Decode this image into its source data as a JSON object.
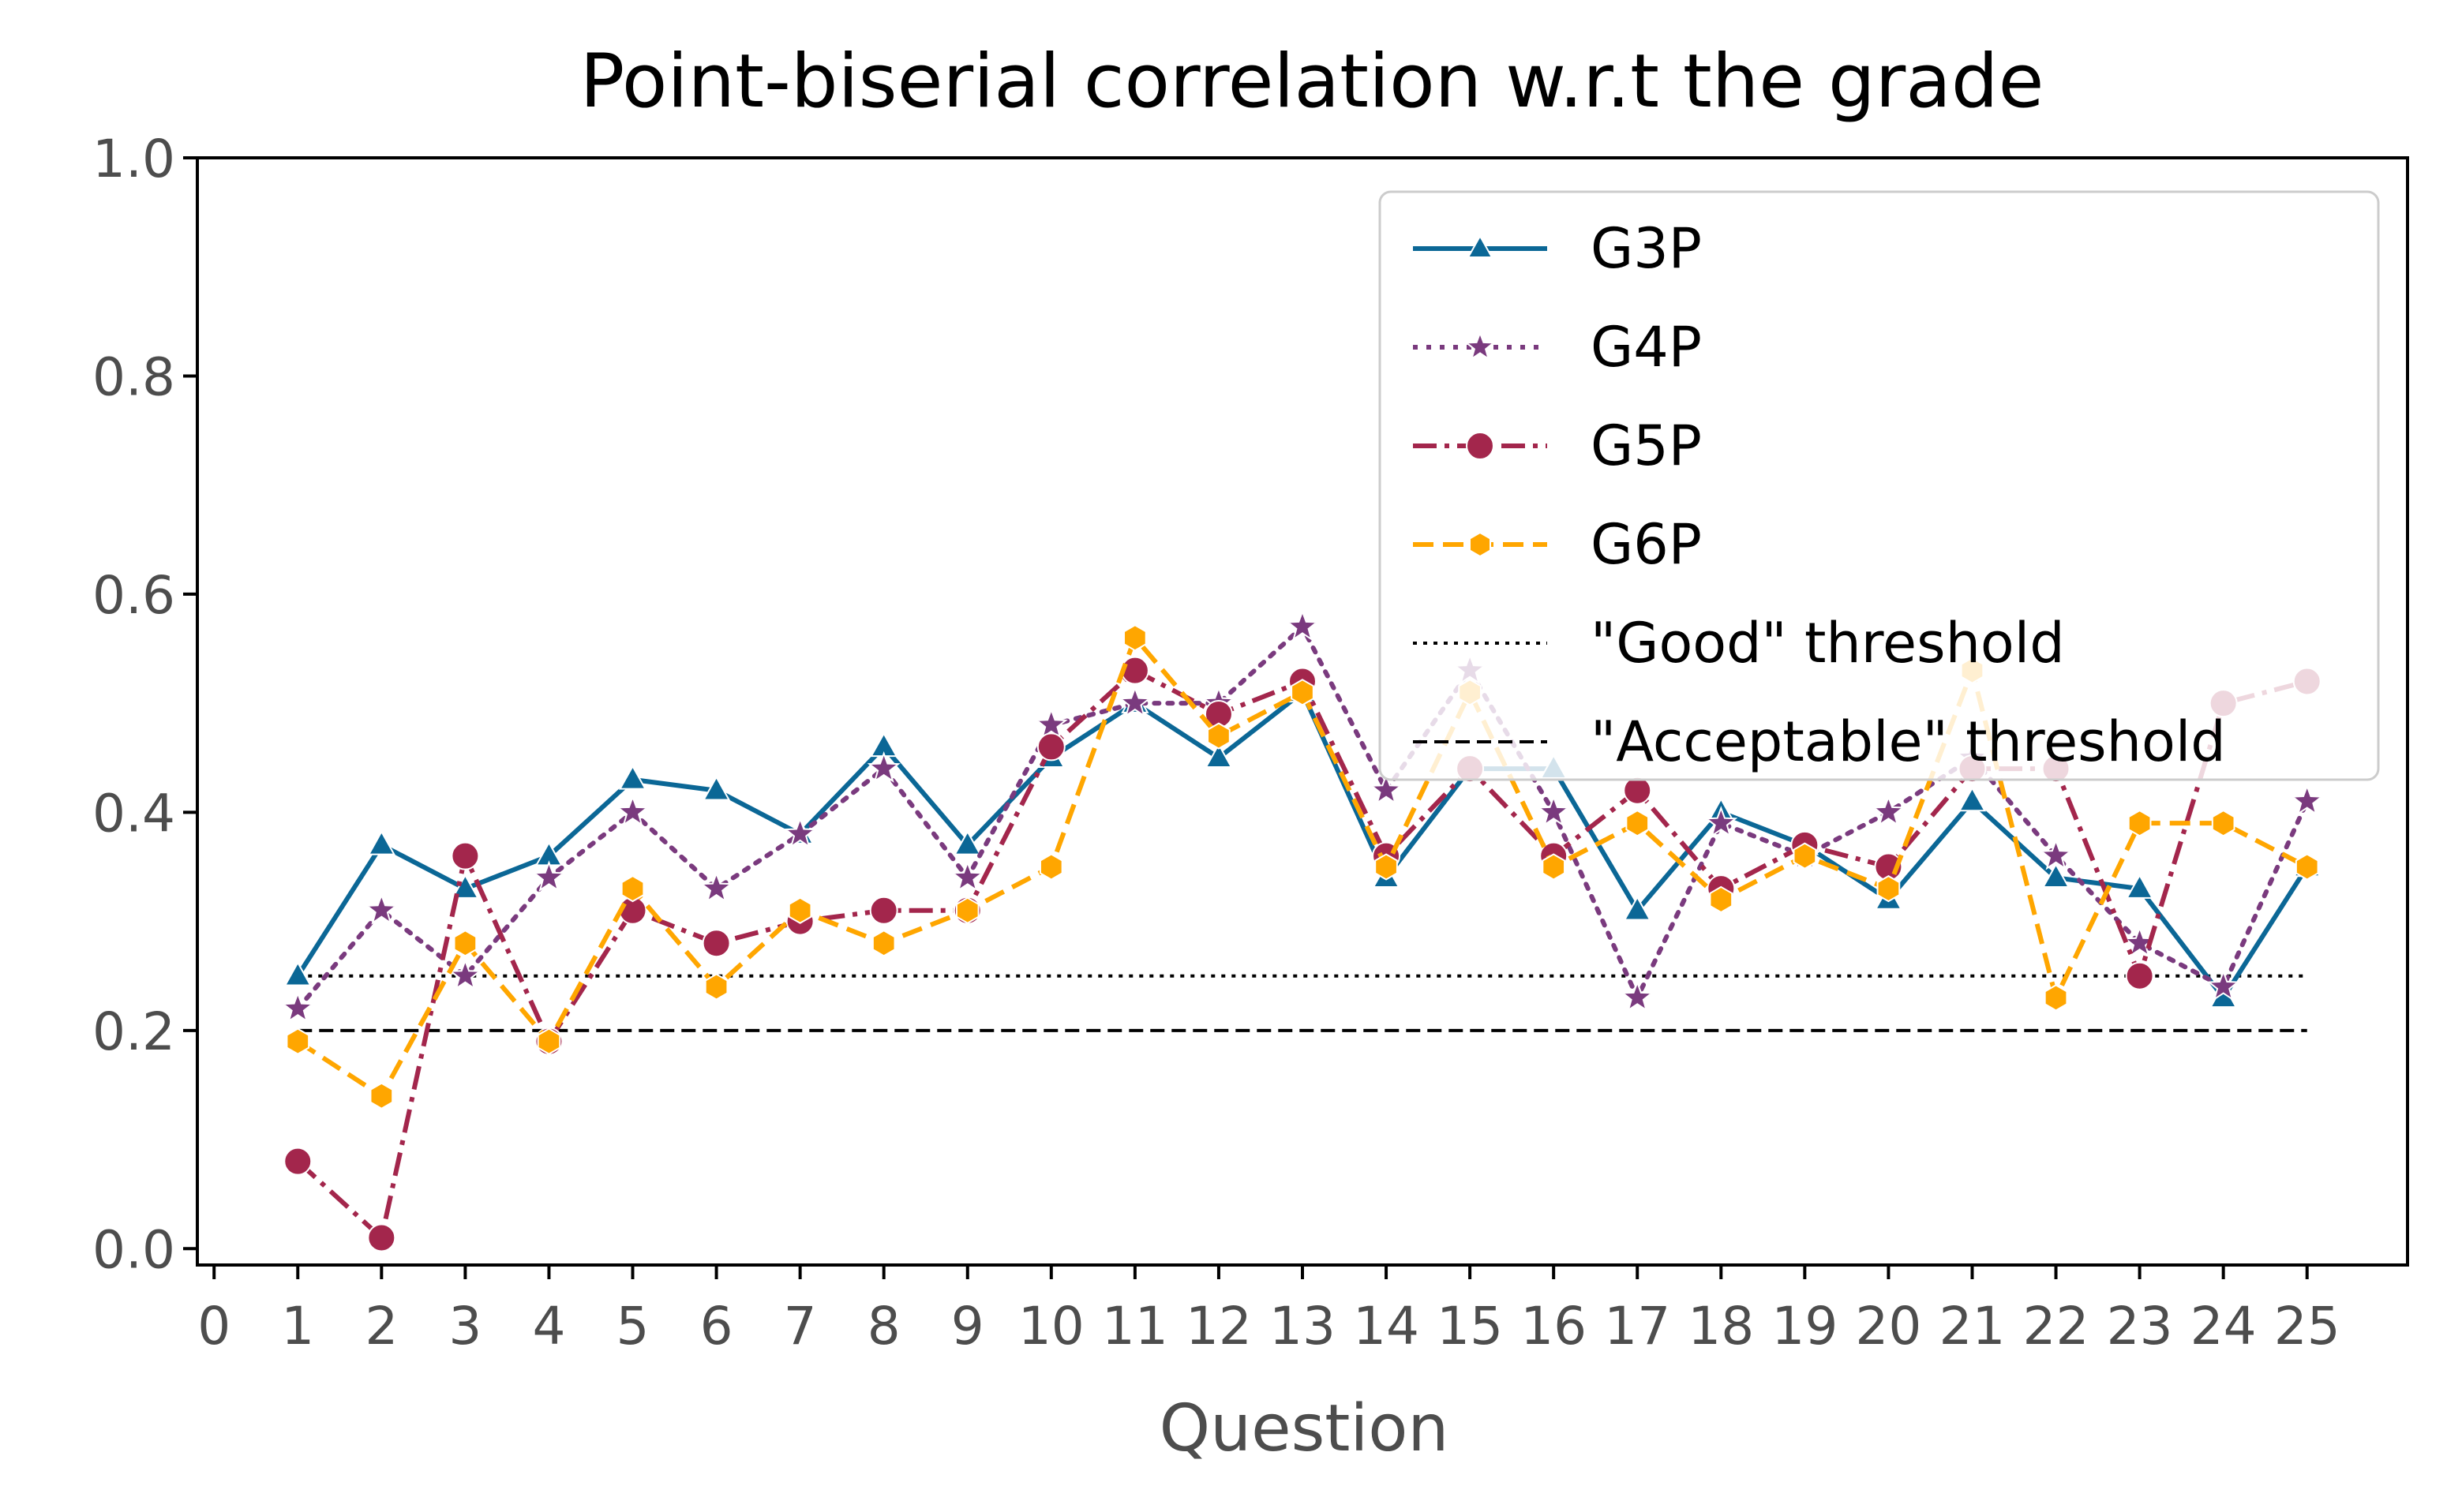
{
  "chart_data": {
    "type": "line",
    "title": "Point-biserial correlation w.r.t the grade",
    "xlabel": "Question",
    "ylabel": "",
    "xlim": [
      -0.2,
      26.2
    ],
    "ylim": [
      -0.015,
      1.0
    ],
    "x_ticks": [
      0,
      1,
      2,
      3,
      4,
      5,
      6,
      7,
      8,
      9,
      10,
      11,
      12,
      13,
      14,
      15,
      16,
      17,
      18,
      19,
      20,
      21,
      22,
      23,
      24,
      25
    ],
    "y_ticks": [
      0.0,
      0.2,
      0.4,
      0.6,
      0.8,
      1.0
    ],
    "y_tick_labels": [
      "0.0",
      "0.2",
      "0.4",
      "0.6",
      "0.8",
      "1.0"
    ],
    "grid": false,
    "legend_position": "top-right",
    "x": [
      1,
      2,
      3,
      4,
      5,
      6,
      7,
      8,
      9,
      10,
      11,
      12,
      13,
      14,
      15,
      16,
      17,
      18,
      19,
      20,
      21,
      22,
      23,
      24,
      25
    ],
    "series": [
      {
        "name": "G3P",
        "color": "#0b6796",
        "dash": "solid",
        "marker": "triangle",
        "values": [
          0.25,
          0.37,
          0.33,
          0.36,
          0.43,
          0.42,
          0.38,
          0.46,
          0.37,
          0.45,
          0.5,
          0.45,
          0.51,
          0.34,
          0.44,
          0.44,
          0.31,
          0.4,
          0.37,
          0.32,
          0.41,
          0.34,
          0.33,
          0.23,
          0.35
        ]
      },
      {
        "name": "G4P",
        "color": "#7a3a7e",
        "dash": "dotted",
        "marker": "star",
        "values": [
          0.22,
          0.31,
          0.25,
          0.34,
          0.4,
          0.33,
          0.38,
          0.44,
          0.34,
          0.48,
          0.5,
          0.5,
          0.57,
          0.42,
          0.53,
          0.4,
          0.23,
          0.39,
          0.36,
          0.4,
          0.45,
          0.36,
          0.28,
          0.24,
          0.41
        ]
      },
      {
        "name": "G5P",
        "color": "#a3264c",
        "dash": "dashdot",
        "marker": "circle",
        "values": [
          0.08,
          0.01,
          0.36,
          0.19,
          0.31,
          0.28,
          0.3,
          0.31,
          0.31,
          0.46,
          0.53,
          0.49,
          0.52,
          0.36,
          0.44,
          0.36,
          0.42,
          0.33,
          0.37,
          0.35,
          0.44,
          0.44,
          0.25,
          0.5,
          0.52
        ]
      },
      {
        "name": "G6P",
        "color": "#ffa600",
        "dash": "dashed",
        "marker": "hexagon",
        "values": [
          0.19,
          0.14,
          0.28,
          0.19,
          0.33,
          0.24,
          0.31,
          0.28,
          0.31,
          0.35,
          0.56,
          0.47,
          0.51,
          0.35,
          0.51,
          0.35,
          0.39,
          0.32,
          0.36,
          0.33,
          0.53,
          0.23,
          0.39,
          0.39,
          0.35
        ]
      }
    ],
    "thresholds": [
      {
        "name": "\"Good\" threshold",
        "value": 0.25,
        "style": "dotted",
        "color": "#000000"
      },
      {
        "name": "\"Acceptable\" threshold",
        "value": 0.2,
        "style": "dashed",
        "color": "#000000"
      }
    ],
    "threshold_x_range": [
      1,
      25
    ]
  }
}
